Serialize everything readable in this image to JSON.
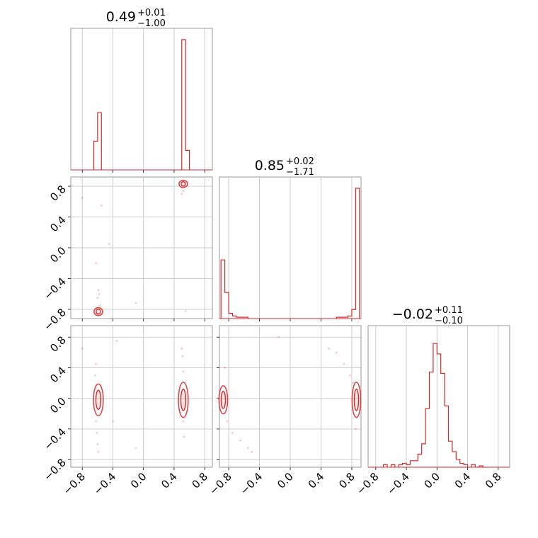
{
  "chart_data": {
    "type": "corner",
    "color": "#d62728",
    "grid": true,
    "ticks": [
      -0.8,
      -0.4,
      0.0,
      0.4,
      0.8
    ],
    "tick_labels": [
      "−0.8",
      "−0.4",
      "0.0",
      "0.4",
      "0.8"
    ],
    "parameters": [
      {
        "range": [
          -0.95,
          0.9
        ],
        "title": {
          "median": "0.49",
          "plus": "+0.01",
          "minus": "−1.00"
        },
        "histogram": {
          "bins": [
            [
              -0.65,
              -0.6,
              0.22
            ],
            [
              -0.6,
              -0.55,
              0.44
            ],
            [
              0.5,
              0.55,
              1.0
            ],
            [
              0.55,
              0.6,
              0.15
            ]
          ]
        }
      },
      {
        "range": [
          -0.92,
          0.92
        ],
        "title": {
          "median": "0.85",
          "plus": "+0.02",
          "minus": "−1.71"
        },
        "histogram": {
          "bins": [
            [
              -0.9,
              -0.85,
              0.45
            ],
            [
              -0.85,
              -0.8,
              0.2
            ],
            [
              -0.8,
              -0.75,
              0.04
            ],
            [
              -0.75,
              -0.7,
              0.02
            ],
            [
              -0.7,
              -0.55,
              0.01
            ],
            [
              0.6,
              0.75,
              0.01
            ],
            [
              0.75,
              0.8,
              0.02
            ],
            [
              0.8,
              0.85,
              0.07
            ],
            [
              0.85,
              0.9,
              1.0
            ]
          ]
        }
      },
      {
        "range": [
          -0.9,
          0.95
        ],
        "title": {
          "median": "−0.02",
          "plus": "+0.11",
          "minus": "−0.10"
        },
        "histogram": {
          "bins": [
            [
              -0.7,
              -0.65,
              0.02
            ],
            [
              -0.6,
              -0.55,
              0.02
            ],
            [
              -0.5,
              -0.45,
              0.02
            ],
            [
              -0.45,
              -0.4,
              0.03
            ],
            [
              -0.4,
              -0.35,
              0.02
            ],
            [
              -0.35,
              -0.3,
              0.05
            ],
            [
              -0.3,
              -0.25,
              0.05
            ],
            [
              -0.25,
              -0.2,
              0.1
            ],
            [
              -0.2,
              -0.15,
              0.18
            ],
            [
              -0.15,
              -0.1,
              0.45
            ],
            [
              -0.1,
              -0.05,
              0.73
            ],
            [
              -0.05,
              0.0,
              0.95
            ],
            [
              0.0,
              0.05,
              0.87
            ],
            [
              0.05,
              0.1,
              0.72
            ],
            [
              0.1,
              0.15,
              0.47
            ],
            [
              0.15,
              0.2,
              0.2
            ],
            [
              0.2,
              0.25,
              0.12
            ],
            [
              0.25,
              0.3,
              0.06
            ],
            [
              0.3,
              0.35,
              0.03
            ],
            [
              0.35,
              0.4,
              0.02
            ],
            [
              0.45,
              0.5,
              0.02
            ],
            [
              0.55,
              0.6,
              0.01
            ]
          ]
        }
      }
    ],
    "pairs": [
      {
        "x_param": 0,
        "y_param": 1,
        "contours": [
          {
            "center": [
              0.52,
              0.83
            ],
            "size": [
              0.035,
              0.04
            ]
          },
          {
            "center": [
              -0.59,
              -0.83
            ],
            "size": [
              0.035,
              0.045
            ]
          }
        ],
        "samples": [
          [
            0.5,
            0.78
          ],
          [
            0.52,
            0.74
          ],
          [
            0.5,
            0.7
          ],
          [
            0.53,
            0.8
          ],
          [
            -0.58,
            -0.6
          ],
          [
            -0.59,
            -0.55
          ],
          [
            -0.6,
            -0.65
          ],
          [
            -0.57,
            -0.75
          ],
          [
            -0.62,
            -0.2
          ],
          [
            -0.55,
            0.55
          ],
          [
            -0.8,
            0.65
          ],
          [
            -0.45,
            0.05
          ],
          [
            -0.1,
            -0.72
          ],
          [
            0.55,
            -0.82
          ]
        ]
      },
      {
        "x_param": 0,
        "y_param": 2,
        "contours": [
          {
            "center": [
              -0.59,
              -0.02
            ],
            "size": [
              0.04,
              0.18
            ]
          },
          {
            "center": [
              0.52,
              -0.02
            ],
            "size": [
              0.04,
              0.2
            ]
          }
        ],
        "samples": [
          [
            -0.62,
            -0.3
          ],
          [
            -0.61,
            -0.45
          ],
          [
            -0.6,
            -0.6
          ],
          [
            -0.59,
            -0.7
          ],
          [
            -0.63,
            0.3
          ],
          [
            -0.62,
            0.45
          ],
          [
            0.52,
            0.35
          ],
          [
            0.51,
            0.55
          ],
          [
            0.5,
            0.65
          ],
          [
            0.52,
            -0.3
          ],
          [
            0.53,
            -0.5
          ],
          [
            -0.8,
            0.65
          ],
          [
            -0.4,
            -0.3
          ],
          [
            -0.1,
            -0.65
          ],
          [
            -0.35,
            0.75
          ]
        ]
      },
      {
        "x_param": 1,
        "y_param": 2,
        "contours": [
          {
            "center": [
              -0.87,
              -0.02
            ],
            "size": [
              0.035,
              0.16
            ]
          },
          {
            "center": [
              0.86,
              -0.02
            ],
            "size": [
              0.035,
              0.2
            ]
          }
        ],
        "samples": [
          [
            -0.82,
            -0.3
          ],
          [
            -0.75,
            -0.45
          ],
          [
            -0.65,
            -0.55
          ],
          [
            -0.55,
            -0.65
          ],
          [
            -0.5,
            -0.7
          ],
          [
            0.6,
            0.6
          ],
          [
            0.7,
            0.45
          ],
          [
            0.78,
            0.3
          ],
          [
            0.82,
            0.2
          ],
          [
            0.85,
            -0.4
          ],
          [
            -0.15,
            0.8
          ],
          [
            0.5,
            0.65
          ],
          [
            -0.85,
            0.4
          ]
        ]
      }
    ]
  }
}
